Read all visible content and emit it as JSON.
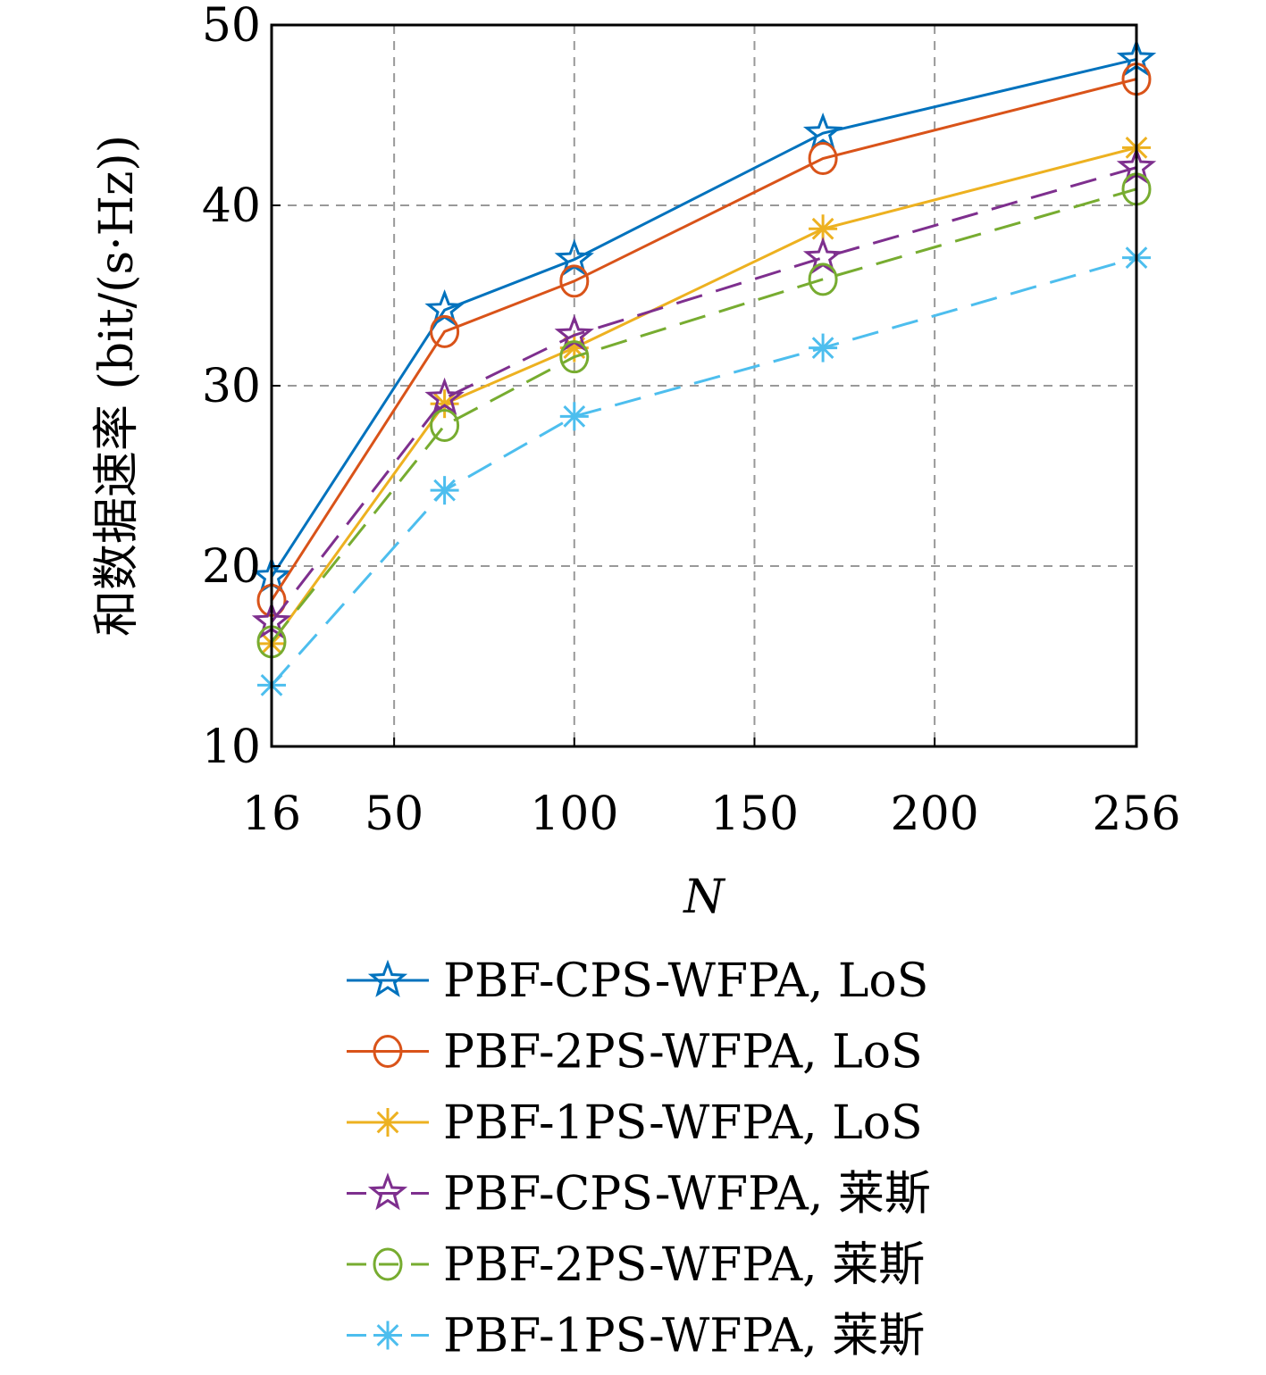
{
  "chart_data": {
    "type": "line",
    "title": "",
    "xlabel": "N",
    "ylabel": "和数据速率 (bit/(s·Hz))",
    "x": [
      16,
      64,
      100,
      169,
      256
    ],
    "xticks": [
      16,
      50,
      100,
      150,
      200,
      256
    ],
    "yticks": [
      10,
      20,
      30,
      40,
      50
    ],
    "xlim": [
      16,
      256
    ],
    "ylim": [
      10,
      50
    ],
    "grid": true,
    "legend_position": "below",
    "series": [
      {
        "name": "PBF-CPS-WFPA, LoS",
        "values": [
          19.4,
          34.2,
          37.0,
          44.0,
          48.1
        ],
        "color": "#0072BD",
        "dash": "solid",
        "marker": "star"
      },
      {
        "name": "PBF-2PS-WFPA, LoS",
        "values": [
          18.1,
          33.0,
          35.8,
          42.6,
          47.0
        ],
        "color": "#D95319",
        "dash": "solid",
        "marker": "circle"
      },
      {
        "name": "PBF-1PS-WFPA, LoS",
        "values": [
          15.7,
          29.0,
          32.1,
          38.7,
          43.2
        ],
        "color": "#EDB120",
        "dash": "solid",
        "marker": "asterisk"
      },
      {
        "name": "PBF-CPS-WFPA, 莱斯",
        "values": [
          16.9,
          29.3,
          32.8,
          37.1,
          42.1
        ],
        "color": "#7E2F8E",
        "dash": "dashed",
        "marker": "star"
      },
      {
        "name": "PBF-2PS-WFPA, 莱斯",
        "values": [
          15.8,
          27.8,
          31.6,
          35.9,
          40.9
        ],
        "color": "#77AC30",
        "dash": "dashed",
        "marker": "circle"
      },
      {
        "name": "PBF-1PS-WFPA, 莱斯",
        "values": [
          13.4,
          24.2,
          28.3,
          32.1,
          37.1
        ],
        "color": "#4DBEEE",
        "dash": "dashed",
        "marker": "asterisk"
      }
    ]
  }
}
